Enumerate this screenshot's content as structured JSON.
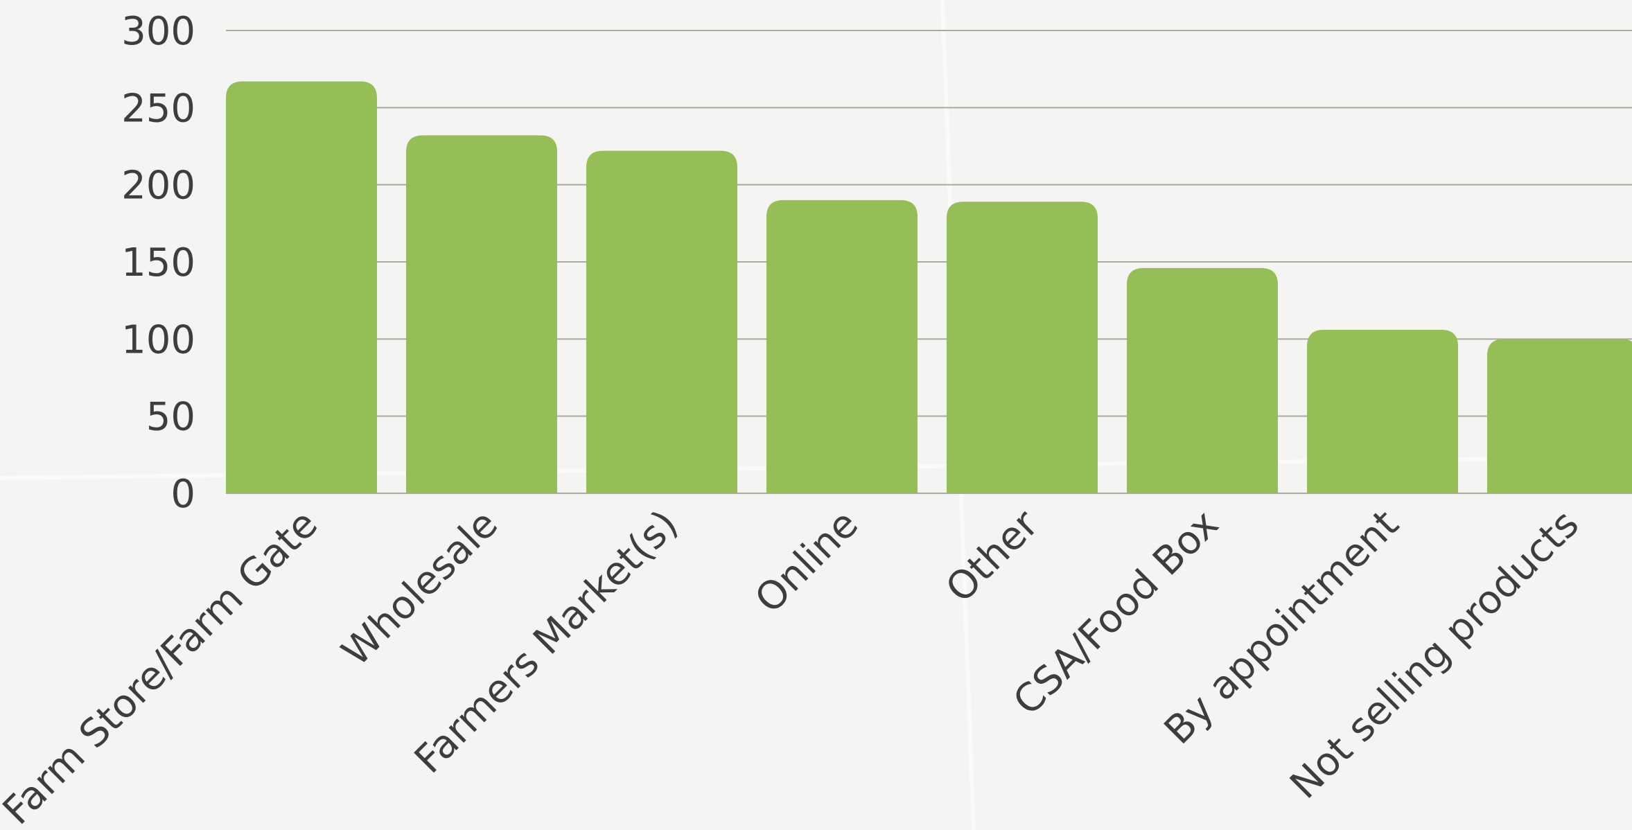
{
  "chart_data": {
    "type": "bar",
    "title": "",
    "xlabel": "",
    "ylabel": "",
    "categories": [
      "Farm Store/Farm Gate",
      "Wholesale",
      "Farmers Market(s)",
      "Online",
      "Other",
      "CSA/Food Box",
      "By appointment",
      "Not selling products"
    ],
    "values": [
      267,
      232,
      222,
      190,
      189,
      146,
      106,
      100
    ],
    "ylim": [
      0,
      300
    ],
    "yticks": [
      0,
      50,
      100,
      150,
      200,
      250,
      300
    ],
    "grid": true,
    "legend": "none",
    "bar_color": "#96be57",
    "background_color": "#f4f4f2"
  }
}
